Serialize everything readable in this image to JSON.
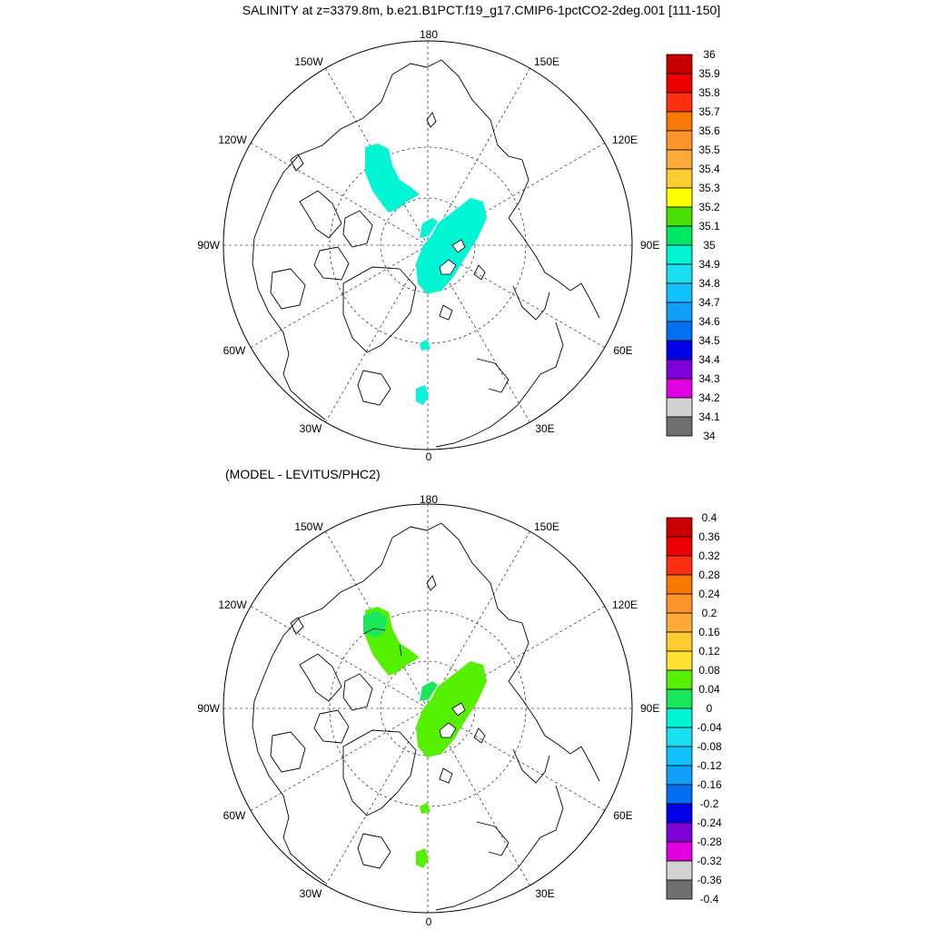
{
  "title": "SALINITY at z=3379.8m, b.e21.B1PCT.f19_g17.CMIP6-1pctCO2-2deg.001 [111-150]",
  "diff_title": "(MODEL - LEVITUS/PHC2)",
  "longitude_labels": {
    "top": "180",
    "bottom": "0",
    "left": "90W",
    "right": "90E",
    "nw_upper": "150W",
    "nw_lower": "120W",
    "ne_upper": "150E",
    "ne_lower": "120E",
    "sw_upper": "60W",
    "sw_lower": "30W",
    "se_upper": "60E",
    "se_lower": "30E"
  },
  "colors": {
    "land_outline": "#000000",
    "grid": "#000000",
    "top_field_fill": "#00f5d4",
    "bottom_field_main": "#55f000",
    "bottom_field_alt": "#18e85a"
  },
  "top_colorbar": {
    "labels": [
      "36",
      "35.9",
      "35.8",
      "35.7",
      "35.6",
      "35.5",
      "35.4",
      "35.3",
      "35.2",
      "35.1",
      "35",
      "34.9",
      "34.8",
      "34.7",
      "34.6",
      "34.5",
      "34.4",
      "34.3",
      "34.2",
      "34.1",
      "34"
    ],
    "colors": [
      "#c80000",
      "#ee0000",
      "#ff3010",
      "#f87800",
      "#ff9428",
      "#ffaa38",
      "#ffcc30",
      "#ffff00",
      "#48e000",
      "#00e864",
      "#00f5d4",
      "#18e0f0",
      "#10c0ff",
      "#10a0f8",
      "#0070f0",
      "#0000e8",
      "#8000d8",
      "#e000e0",
      "#d2d2d2",
      "#707070"
    ]
  },
  "bottom_colorbar": {
    "labels": [
      "0.4",
      "0.36",
      "0.32",
      "0.28",
      "0.24",
      "0.2",
      "0.16",
      "0.12",
      "0.08",
      "0.04",
      "0",
      "-0.04",
      "-0.08",
      "-0.12",
      "-0.16",
      "-0.2",
      "-0.24",
      "-0.28",
      "-0.32",
      "-0.36",
      "-0.4"
    ],
    "colors": [
      "#c80000",
      "#ee0000",
      "#ff3010",
      "#f87800",
      "#ff9428",
      "#ffaa38",
      "#ffcc30",
      "#ffe030",
      "#55f000",
      "#18e85a",
      "#00f5d4",
      "#18e0f0",
      "#10c0ff",
      "#10a0f8",
      "#0070f0",
      "#0000e8",
      "#8000d8",
      "#e000e0",
      "#d2d2d2",
      "#707070"
    ]
  }
}
